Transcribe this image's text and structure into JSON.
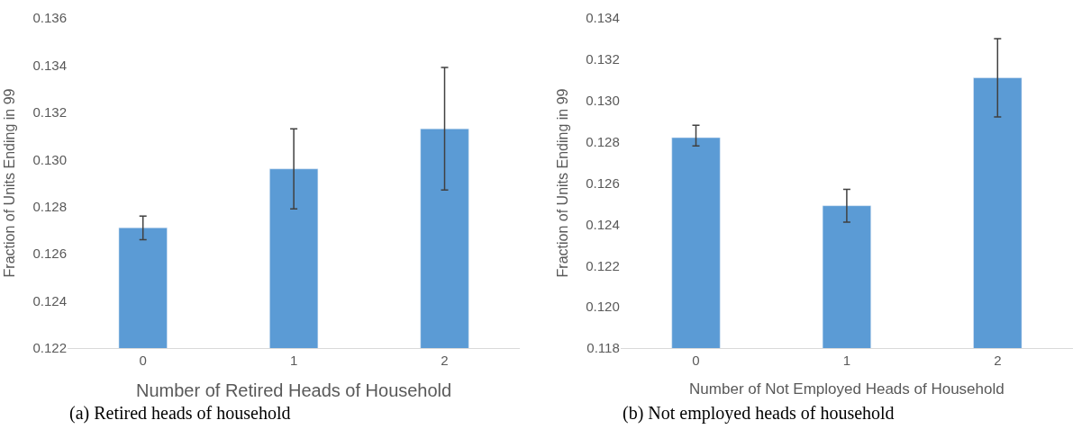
{
  "chart_data": [
    {
      "type": "bar",
      "categories": [
        "0",
        "1",
        "2"
      ],
      "values": [
        0.1271,
        0.1296,
        0.1313
      ],
      "color": "#5b9bd5",
      "errors": [
        [
          0.1266,
          0.1276
        ],
        [
          0.1279,
          0.1313
        ],
        [
          0.1287,
          0.1339
        ]
      ],
      "xlabel": "Number of Retired Heads of Household",
      "ylabel": "Fraction of Units Ending in 99",
      "ylim": [
        0.122,
        0.136
      ],
      "yticks": [
        {
          "value": 0.122,
          "label": "0.122"
        },
        {
          "value": 0.124,
          "label": "0.124"
        },
        {
          "value": 0.126,
          "label": "0.126"
        },
        {
          "value": 0.128,
          "label": "0.128"
        },
        {
          "value": 0.13,
          "label": "0.130"
        },
        {
          "value": 0.132,
          "label": "0.132"
        },
        {
          "value": 0.134,
          "label": "0.134"
        },
        {
          "value": 0.136,
          "label": "0.136"
        }
      ],
      "annotations": [
        "(a) Retired heads of household"
      ]
    },
    {
      "type": "bar",
      "categories": [
        "0",
        "1",
        "2"
      ],
      "values": [
        0.1282,
        0.1249,
        0.1311
      ],
      "color": "#5b9bd5",
      "errors": [
        [
          0.1278,
          0.1288
        ],
        [
          0.1241,
          0.1257
        ],
        [
          0.1292,
          0.133
        ]
      ],
      "xlabel": "Number of Not Employed Heads of Household",
      "ylabel": "Fraction of Units Ending in 99",
      "ylim": [
        0.118,
        0.134
      ],
      "yticks": [
        {
          "value": 0.118,
          "label": "0.118"
        },
        {
          "value": 0.12,
          "label": "0.120"
        },
        {
          "value": 0.122,
          "label": "0.122"
        },
        {
          "value": 0.124,
          "label": "0.124"
        },
        {
          "value": 0.126,
          "label": "0.126"
        },
        {
          "value": 0.128,
          "label": "0.128"
        },
        {
          "value": 0.13,
          "label": "0.130"
        },
        {
          "value": 0.132,
          "label": "0.132"
        },
        {
          "value": 0.134,
          "label": "0.134"
        }
      ],
      "annotations": [
        "(b) Not employed heads of household"
      ]
    }
  ]
}
